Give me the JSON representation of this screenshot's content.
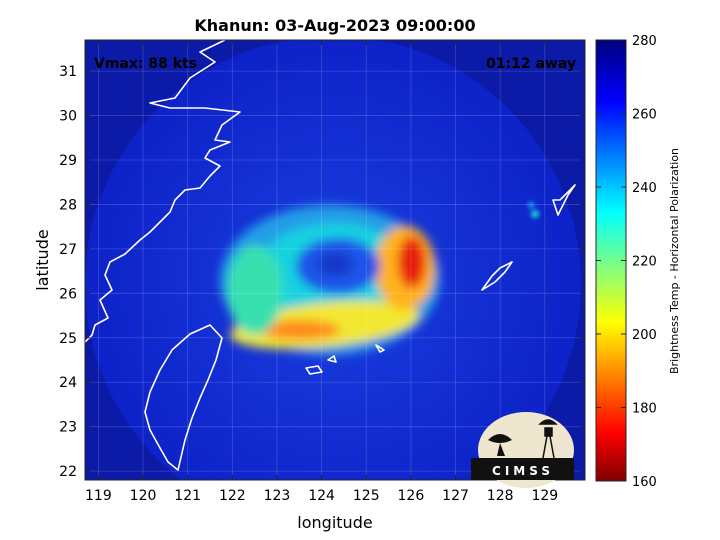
{
  "chart_data": {
    "type": "heatmap",
    "title": "Khanun: 03-Aug-2023 09:00:00",
    "annotations": {
      "vmax": "Vmax: 88 kts",
      "time_away": "01:12 away"
    },
    "xlabel": "longitude",
    "ylabel": "latitude",
    "xlim": [
      118.7,
      129.9
    ],
    "ylim": [
      21.8,
      31.7
    ],
    "x_ticks": [
      119,
      120,
      121,
      122,
      123,
      124,
      125,
      126,
      127,
      128,
      129
    ],
    "y_ticks": [
      22,
      23,
      24,
      25,
      26,
      27,
      28,
      29,
      30,
      31
    ],
    "grid": true,
    "colorbar": {
      "label": "Brightness Temp - Horizontal Polarization",
      "range": [
        160,
        280
      ],
      "ticks": [
        160,
        180,
        200,
        220,
        240,
        260,
        280
      ],
      "colormap": "jet",
      "position": "right"
    },
    "storm_center": {
      "lon": 124.5,
      "lat": 26.6
    },
    "scan_swath": {
      "center_lon": 124.3,
      "center_lat": 26.75,
      "radius_deg": 5.55
    },
    "features": [
      {
        "name": "eye",
        "lon": 124.5,
        "lat": 26.6,
        "value": 262
      },
      {
        "name": "eyewall-east",
        "lon": 126.0,
        "lat": 26.7,
        "value": 182
      },
      {
        "name": "eyewall-south-band",
        "lon": 124.6,
        "lat": 25.5,
        "value": 205
      },
      {
        "name": "rainband-west",
        "lon": 122.2,
        "lat": 25.8,
        "value": 222
      },
      {
        "name": "environment",
        "value": 266
      }
    ],
    "logo": "CIMSS"
  },
  "colors": {
    "background_cold": "#0d1fb8",
    "coastline": "#ffffff",
    "axis_text": "#262626"
  }
}
